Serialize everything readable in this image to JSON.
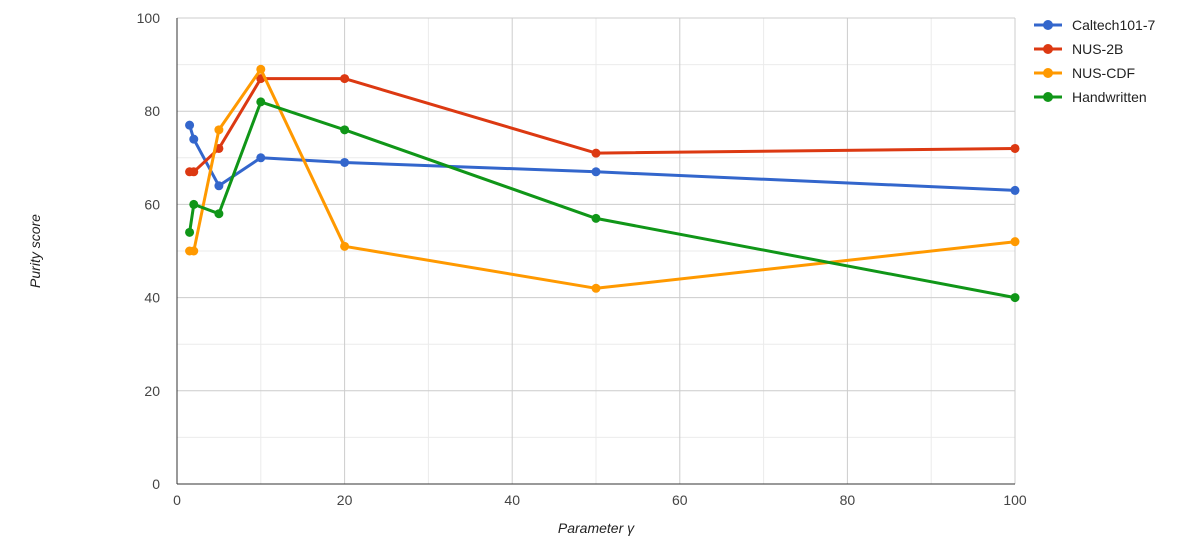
{
  "chart_data": {
    "type": "line",
    "title": "",
    "xlabel": "Parameter γ",
    "ylabel": "Purity score",
    "xlim": [
      0,
      100
    ],
    "ylim": [
      0,
      100
    ],
    "x_ticks": [
      0,
      20,
      40,
      60,
      80,
      100
    ],
    "y_ticks": [
      0,
      20,
      40,
      60,
      80,
      100
    ],
    "minor_x_grid": [
      10,
      30,
      50,
      70,
      90
    ],
    "minor_y_grid": [
      10,
      30,
      50,
      70,
      90
    ],
    "grid": true,
    "legend_position": "right",
    "x": [
      1.5,
      2,
      5,
      10,
      20,
      50,
      100
    ],
    "series": [
      {
        "name": "Caltech101-7",
        "color": "#3366cc",
        "values": [
          77,
          74,
          64,
          70,
          69,
          67,
          63
        ]
      },
      {
        "name": "NUS-2B",
        "color": "#dc3912",
        "values": [
          67,
          67,
          72,
          87,
          87,
          71,
          72
        ]
      },
      {
        "name": "NUS-CDF",
        "color": "#ff9900",
        "values": [
          50,
          50,
          76,
          89,
          51,
          42,
          52
        ]
      },
      {
        "name": "Handwritten",
        "color": "#109618",
        "values": [
          54,
          60,
          58,
          82,
          76,
          57,
          40
        ]
      }
    ]
  }
}
